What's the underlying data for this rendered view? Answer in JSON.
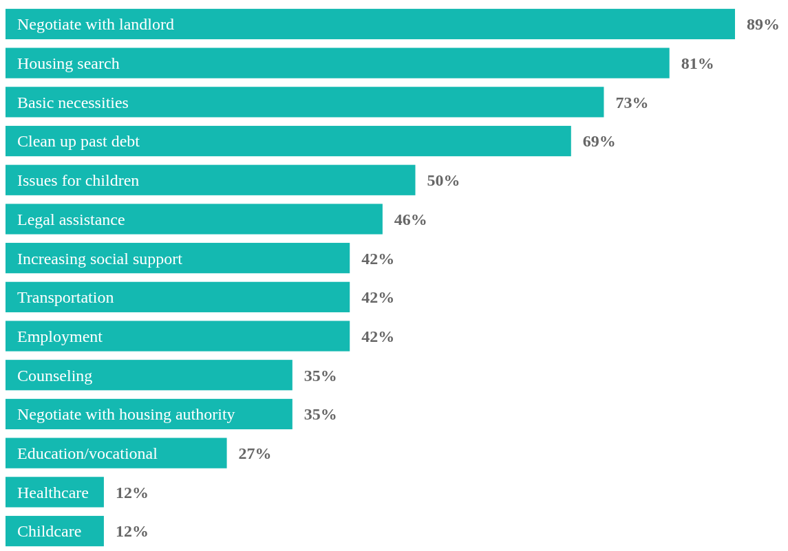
{
  "chart_data": {
    "type": "bar",
    "orientation": "horizontal",
    "categories": [
      "Negotiate with landlord",
      "Housing search",
      "Basic necessities",
      "Clean up past debt",
      "Issues for children",
      "Legal assistance",
      "Increasing social support",
      "Transportation",
      "Employment",
      "Counseling",
      "Negotiate with housing authority",
      "Education/vocational",
      "Healthcare",
      "Childcare"
    ],
    "values": [
      89,
      81,
      73,
      69,
      50,
      46,
      42,
      42,
      42,
      35,
      35,
      27,
      12,
      12
    ],
    "value_labels": [
      "89%",
      "81%",
      "73%",
      "69%",
      "50%",
      "46%",
      "42%",
      "42%",
      "42%",
      "35%",
      "35%",
      "27%",
      "12%",
      "12%"
    ],
    "color": "#14b9b1"
  }
}
